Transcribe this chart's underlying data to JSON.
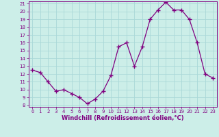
{
  "x": [
    0,
    1,
    2,
    3,
    4,
    5,
    6,
    7,
    8,
    9,
    10,
    11,
    12,
    13,
    14,
    15,
    16,
    17,
    18,
    19,
    20,
    21,
    22,
    23
  ],
  "y": [
    12.5,
    12.2,
    11.0,
    9.8,
    10.0,
    9.5,
    9.0,
    8.2,
    8.8,
    9.8,
    11.8,
    15.5,
    16.0,
    13.0,
    15.5,
    19.0,
    20.2,
    21.2,
    20.2,
    20.2,
    19.0,
    16.0,
    12.0,
    11.5
  ],
  "line_color": "#800080",
  "marker": "+",
  "marker_size": 4,
  "marker_linewidth": 1.0,
  "bg_color": "#cceee8",
  "grid_color": "#aad8d8",
  "xlabel": "Windchill (Refroidissement éolien,°C)",
  "xlim": [
    -0.5,
    23.5
  ],
  "ylim": [
    7.8,
    21.3
  ],
  "yticks": [
    8,
    9,
    10,
    11,
    12,
    13,
    14,
    15,
    16,
    17,
    18,
    19,
    20,
    21
  ],
  "xticks": [
    0,
    1,
    2,
    3,
    4,
    5,
    6,
    7,
    8,
    9,
    10,
    11,
    12,
    13,
    14,
    15,
    16,
    17,
    18,
    19,
    20,
    21,
    22,
    23
  ],
  "tick_fontsize": 5.0,
  "xlabel_fontsize": 6.0,
  "label_color": "#800080",
  "spine_color": "#800080",
  "linewidth": 0.9
}
